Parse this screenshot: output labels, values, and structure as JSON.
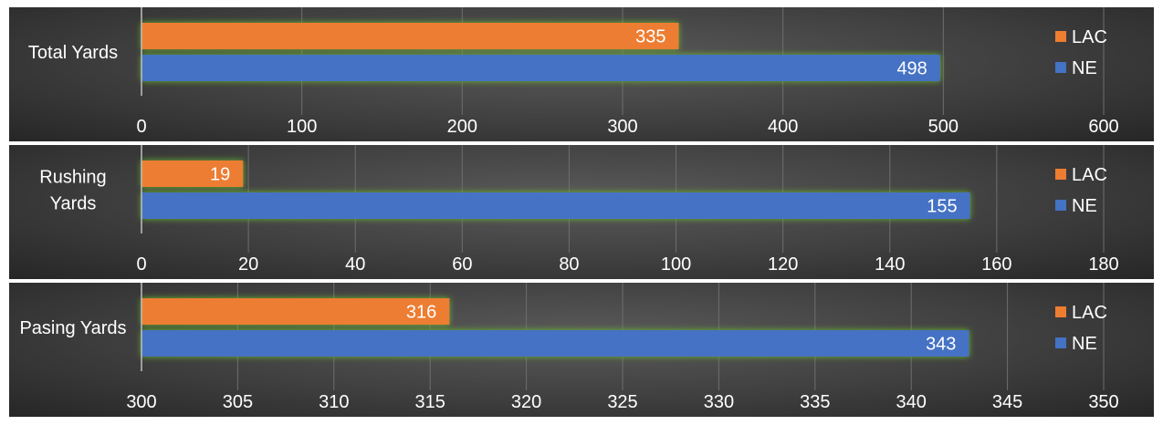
{
  "chart_data": [
    {
      "type": "bar",
      "orientation": "horizontal",
      "categories": [
        "Total Yards"
      ],
      "series": [
        {
          "name": "LAC",
          "values": [
            335
          ],
          "color": "#ED7D31"
        },
        {
          "name": "NE",
          "values": [
            498
          ],
          "color": "#4472C4"
        }
      ],
      "xlim": [
        0,
        600
      ],
      "xticks": [
        "0",
        "100",
        "200",
        "300",
        "400",
        "500",
        "600"
      ],
      "grid": true,
      "legend": "right"
    },
    {
      "type": "bar",
      "orientation": "horizontal",
      "categories": [
        "Rushing Yards"
      ],
      "series": [
        {
          "name": "LAC",
          "values": [
            19
          ],
          "color": "#ED7D31"
        },
        {
          "name": "NE",
          "values": [
            155
          ],
          "color": "#4472C4"
        }
      ],
      "xlim": [
        0,
        180
      ],
      "xticks": [
        "0",
        "20",
        "40",
        "60",
        "80",
        "100",
        "120",
        "140",
        "160",
        "180"
      ],
      "grid": true,
      "legend": "right"
    },
    {
      "type": "bar",
      "orientation": "horizontal",
      "categories": [
        "Pasing Yards"
      ],
      "series": [
        {
          "name": "LAC",
          "values": [
            316
          ],
          "color": "#ED7D31"
        },
        {
          "name": "NE",
          "values": [
            343
          ],
          "color": "#4472C4"
        }
      ],
      "xlim": [
        300,
        350
      ],
      "xticks": [
        "300",
        "305",
        "310",
        "315",
        "320",
        "325",
        "330",
        "335",
        "340",
        "345",
        "350"
      ],
      "grid": true,
      "legend": "right"
    }
  ]
}
